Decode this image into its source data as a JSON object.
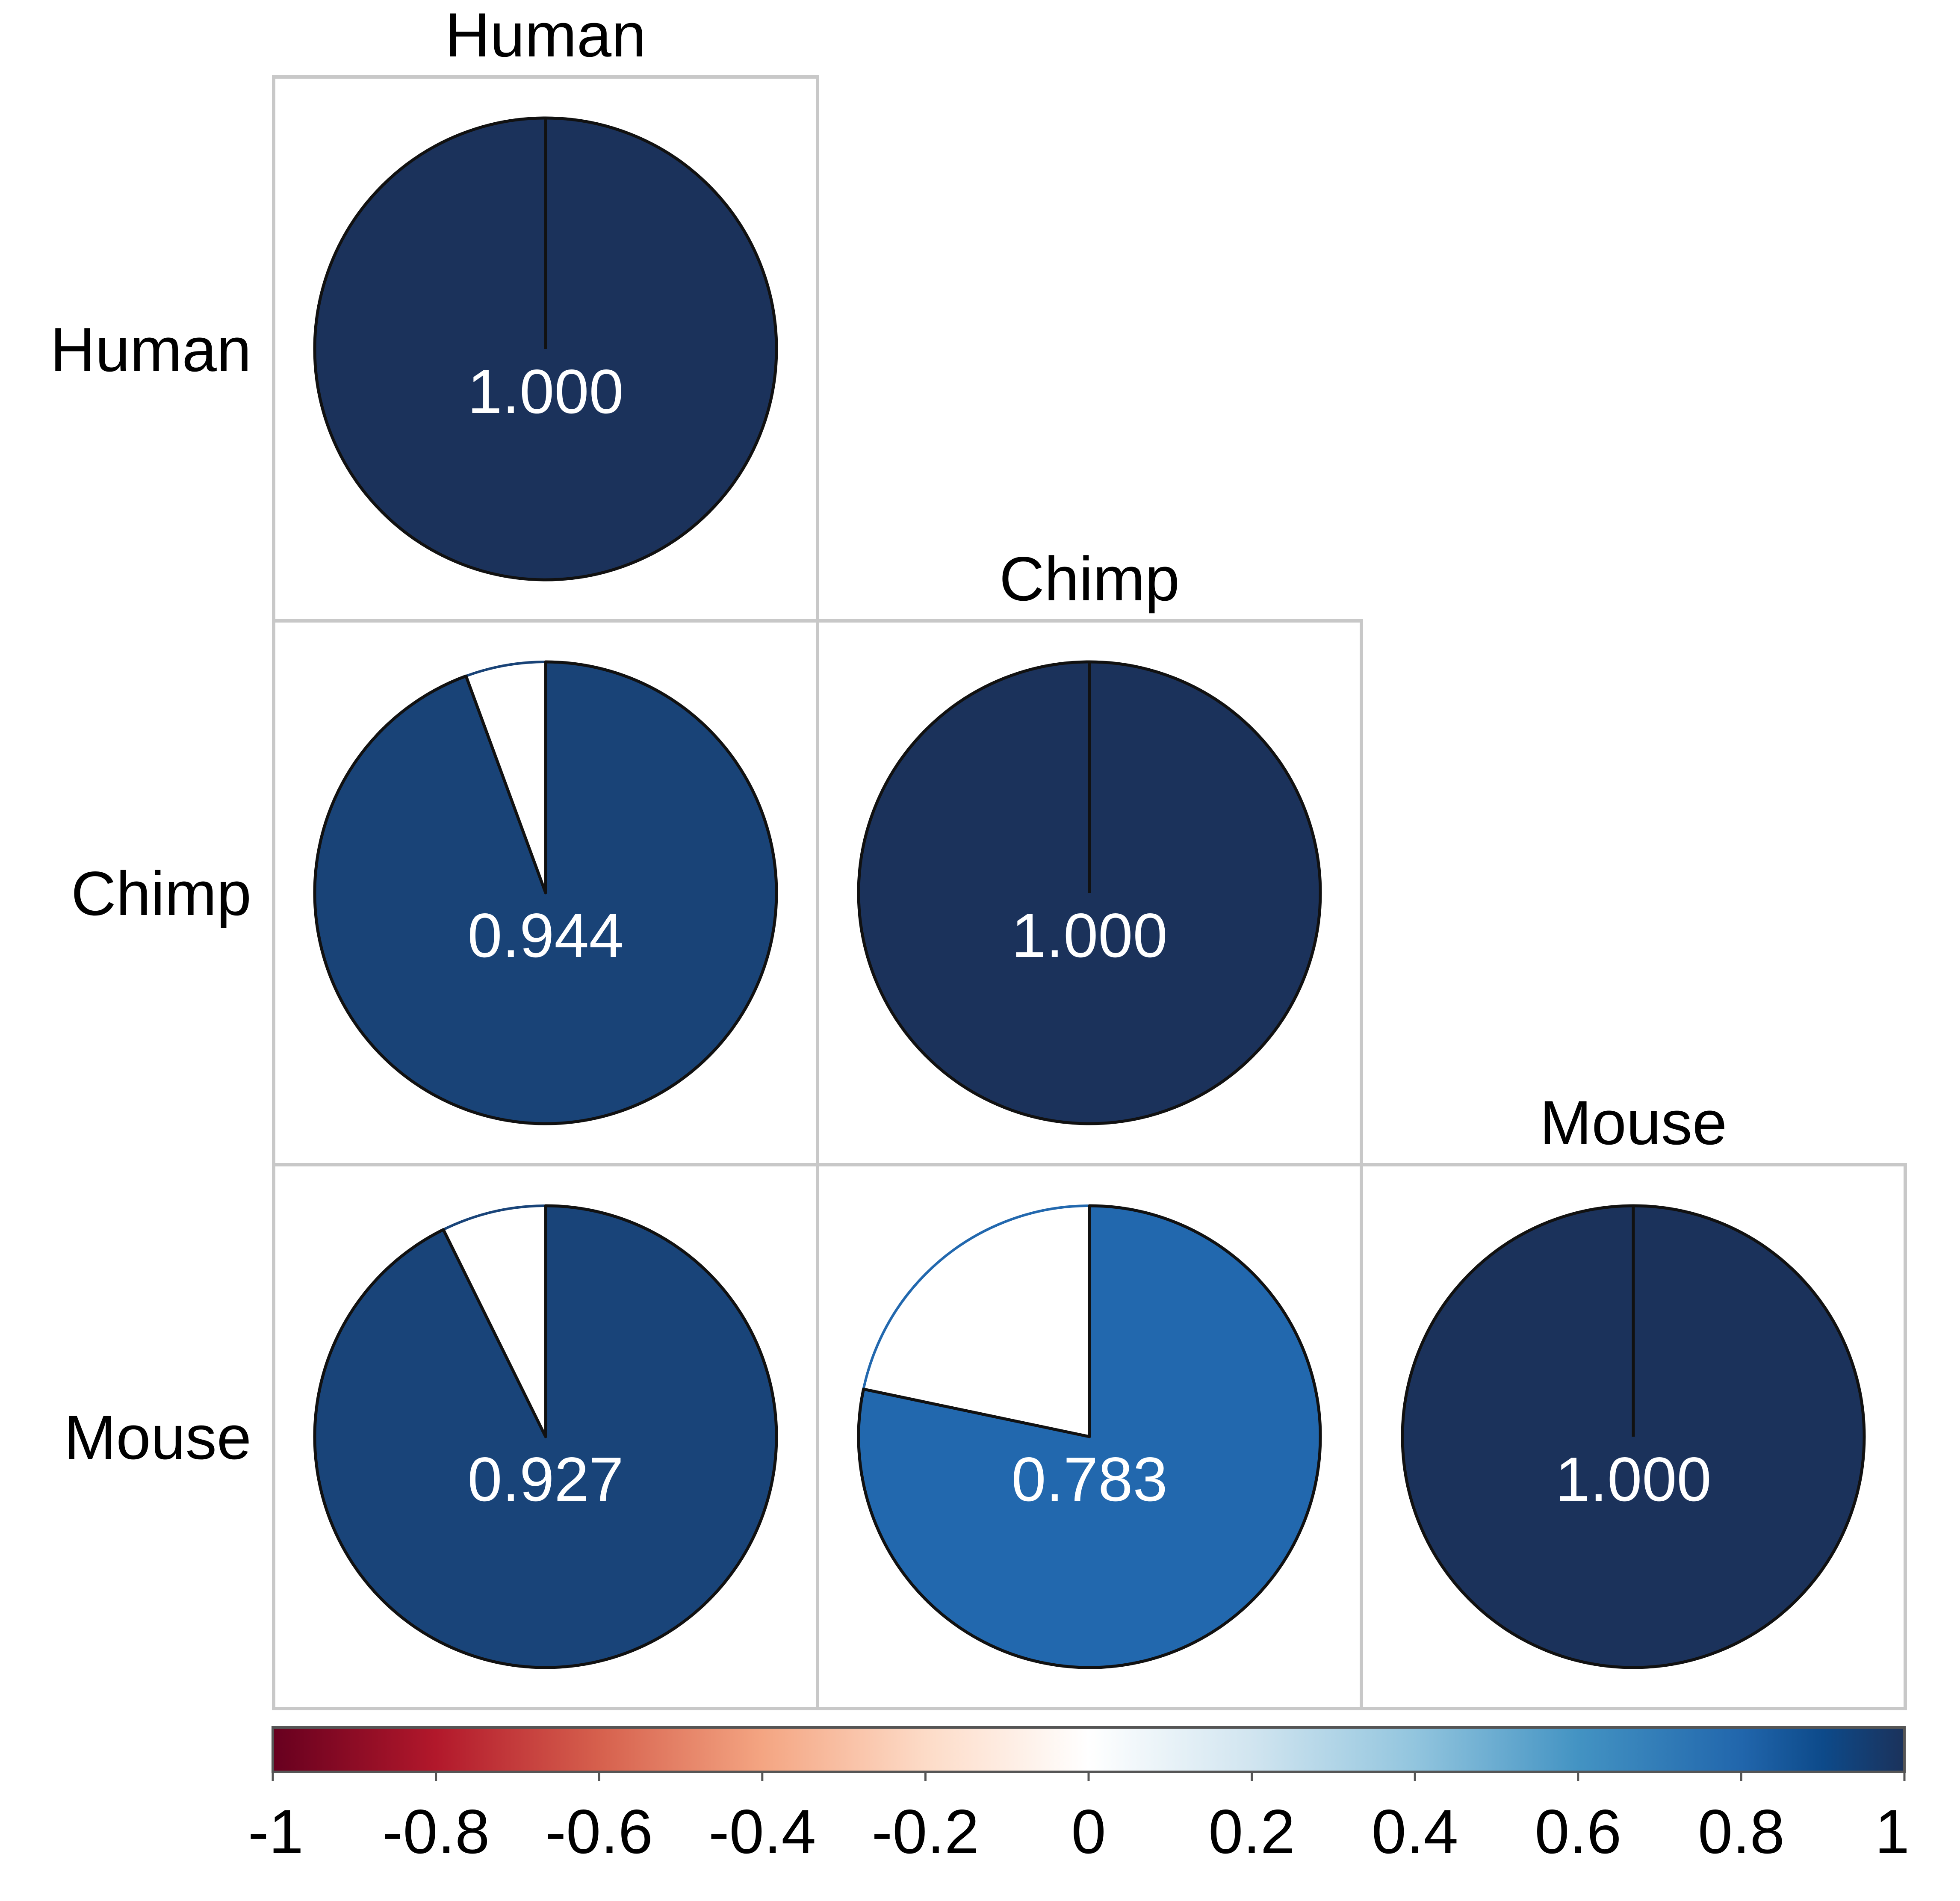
{
  "chart_data": {
    "type": "heatmap",
    "style": "correlation-pie",
    "variables": [
      "Human",
      "Chimp",
      "Mouse"
    ],
    "matrix": [
      [
        1.0,
        null,
        null
      ],
      [
        0.944,
        1.0,
        null
      ],
      [
        0.927,
        0.783,
        1.0
      ]
    ],
    "cells": [
      {
        "row": "Human",
        "col": "Human",
        "value": 1.0,
        "label": "1.000",
        "color": "#1b325b"
      },
      {
        "row": "Chimp",
        "col": "Human",
        "value": 0.944,
        "label": "0.944",
        "color": "#194377"
      },
      {
        "row": "Chimp",
        "col": "Chimp",
        "value": 1.0,
        "label": "1.000",
        "color": "#1b325b"
      },
      {
        "row": "Mouse",
        "col": "Human",
        "value": 0.927,
        "label": "0.927",
        "color": "#194479"
      },
      {
        "row": "Mouse",
        "col": "Chimp",
        "value": 0.783,
        "label": "0.783",
        "color": "#2268ae"
      },
      {
        "row": "Mouse",
        "col": "Mouse",
        "value": 1.0,
        "label": "1.000",
        "color": "#1b325b"
      }
    ],
    "colorbar": {
      "range": [
        -1,
        1
      ],
      "ticks": [
        "-1",
        "-0.8",
        "-0.6",
        "-0.4",
        "-0.2",
        "0",
        "0.2",
        "0.4",
        "0.6",
        "0.8",
        "1"
      ],
      "tick_values": [
        -1,
        -0.8,
        -0.6,
        -0.4,
        -0.2,
        0,
        0.2,
        0.4,
        0.6,
        0.8,
        1
      ],
      "stops": [
        {
          "value": -1.0,
          "color": "#67001f"
        },
        {
          "value": -0.8,
          "color": "#b2182b"
        },
        {
          "value": -0.6,
          "color": "#d6604d"
        },
        {
          "value": -0.4,
          "color": "#f4a582"
        },
        {
          "value": -0.2,
          "color": "#fddbc7"
        },
        {
          "value": 0.0,
          "color": "#ffffff"
        },
        {
          "value": 0.2,
          "color": "#d1e5f0"
        },
        {
          "value": 0.4,
          "color": "#92c5de"
        },
        {
          "value": 0.6,
          "color": "#4393c3"
        },
        {
          "value": 0.8,
          "color": "#2166ac"
        },
        {
          "value": 0.9,
          "color": "#0d4a8a"
        },
        {
          "value": 1.0,
          "color": "#1b325b"
        }
      ],
      "placement": "bottom"
    },
    "layout": "lower-triangle",
    "grid": true,
    "title": "",
    "xlabel": "",
    "ylabel": ""
  }
}
